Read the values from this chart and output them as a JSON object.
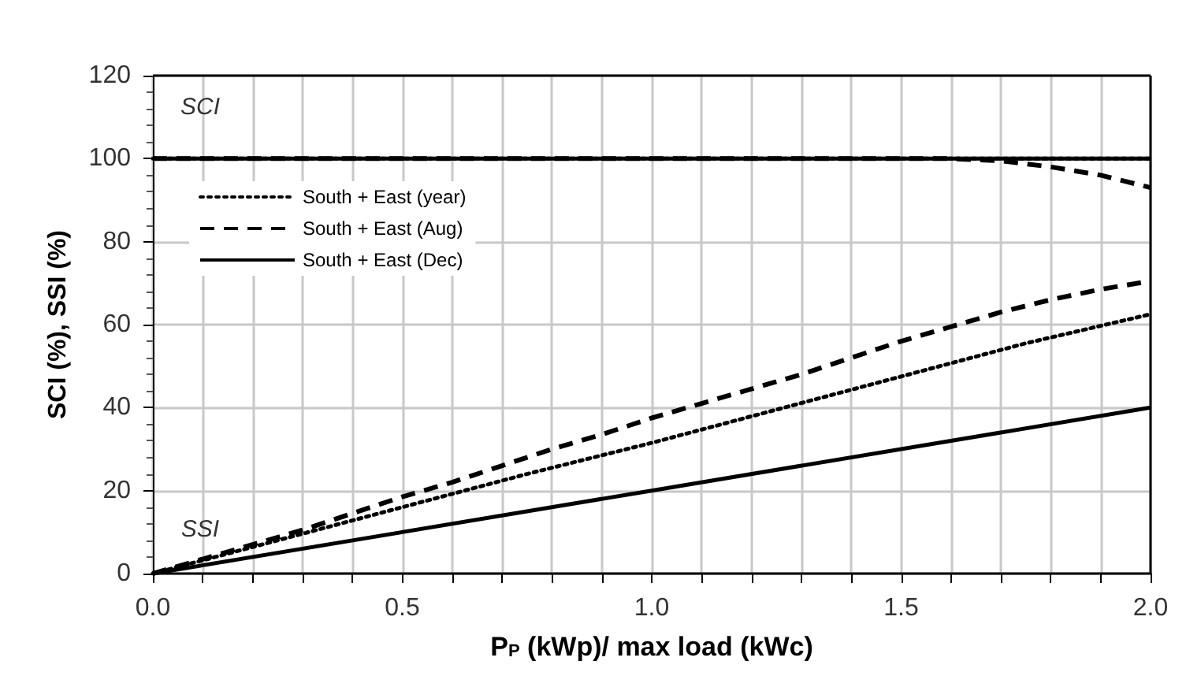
{
  "chart_data": {
    "type": "line",
    "xlabel": "P$_{P}$ (kWp)/ max load (kWc)",
    "ylabel": "SCI (%), SSI (%)",
    "xlim": [
      0,
      2
    ],
    "ylim": [
      0,
      120
    ],
    "xticks": [
      {
        "value": 0,
        "label": "0.0"
      },
      {
        "value": 0.1,
        "label": null
      },
      {
        "value": 0.2,
        "label": null
      },
      {
        "value": 0.3,
        "label": null
      },
      {
        "value": 0.4,
        "label": null
      },
      0.5,
      {
        "value": 0.6,
        "label": null
      },
      {
        "value": 0.7,
        "label": null
      },
      {
        "value": 0.8,
        "label": null
      },
      {
        "value": 0.9,
        "label": null
      },
      {
        "value": 1,
        "label": "1.0"
      },
      {
        "value": 1.1,
        "label": null
      },
      {
        "value": 1.2,
        "label": null
      },
      {
        "value": 1.3,
        "label": null
      },
      {
        "value": 1.4,
        "label": null
      },
      1.5,
      {
        "value": 1.6,
        "label": null
      },
      {
        "value": 1.7,
        "label": null
      },
      {
        "value": 1.8,
        "label": null
      },
      {
        "value": 1.9,
        "label": null
      },
      {
        "value": 2,
        "label": "2.0"
      }
    ],
    "yticks": [
      0,
      20,
      40,
      60,
      80,
      100,
      120
    ],
    "grid": true,
    "legend": "top left",
    "marker": "none",
    "annotations": [
      "SCI",
      "SSI"
    ],
    "series": [
      {
        "name": "South + East (year)",
        "color": "#000000",
        "line_style": "dotted",
        "x": [
          0,
          2
        ],
        "values": [
          100,
          100
        ]
      },
      {
        "name": "South + East (Aug)",
        "color": "#000000",
        "line_style": "dashed",
        "x": [
          0,
          1.6,
          1.7,
          1.8,
          1.9,
          2.0
        ],
        "values": [
          100,
          100,
          99.5,
          98,
          96,
          93
        ]
      },
      {
        "name": "South + East (Dec)",
        "color": "#000000",
        "line_style": "solid",
        "x": [
          0,
          2
        ],
        "values": [
          100,
          100
        ]
      },
      {
        "color": "#000000",
        "line_style": "dotted",
        "x": [
          0,
          0.25,
          0.5,
          0.75,
          1.0,
          1.25,
          1.5,
          1.75,
          2.0
        ],
        "values": [
          0,
          8,
          16,
          24,
          31.5,
          39.5,
          47.5,
          55.5,
          62.5
        ]
      },
      {
        "color": "#000000",
        "line_style": "dashed",
        "x": [
          0,
          0.1,
          0.2,
          0.3,
          0.4,
          0.5,
          0.6,
          0.7,
          0.8,
          0.9,
          1.0,
          1.1,
          1.2,
          1.3,
          1.4,
          1.5,
          1.6,
          1.7,
          1.8,
          1.9,
          2.0
        ],
        "values": [
          0,
          3.5,
          7,
          10.5,
          14.5,
          18.5,
          22,
          26,
          30,
          33.5,
          37.5,
          41,
          44.5,
          48,
          52,
          56,
          59.5,
          63,
          66,
          68.5,
          70.5
        ]
      },
      {
        "color": "#000000",
        "line_style": "solid",
        "x": [
          0,
          1,
          2
        ],
        "values": [
          0,
          20,
          40
        ]
      }
    ]
  }
}
